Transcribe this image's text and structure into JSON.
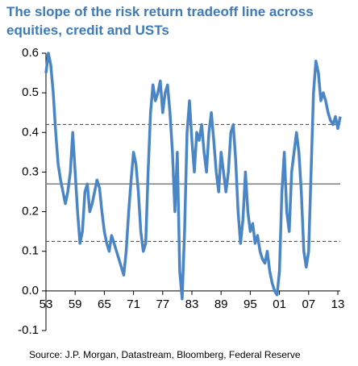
{
  "chart_data": {
    "type": "line",
    "title_lines": [
      "The slope of the risk return tradeoff line across",
      "equities, credit and USTs"
    ],
    "source": "Source: J.P. Morgan, Datastream, Bloomberg, Federal Reserve",
    "x": [
      1953,
      1953.5,
      1954,
      1954.5,
      1955,
      1955.5,
      1956,
      1956.5,
      1957,
      1957.5,
      1958,
      1958.5,
      1959,
      1959.5,
      1960,
      1960.5,
      1961,
      1961.5,
      1962,
      1962.5,
      1963,
      1963.5,
      1964,
      1964.5,
      1965,
      1965.5,
      1966,
      1966.5,
      1967,
      1967.5,
      1968,
      1968.5,
      1969,
      1969.5,
      1970,
      1970.5,
      1971,
      1971.5,
      1972,
      1972.5,
      1973,
      1973.5,
      1974,
      1974.5,
      1975,
      1975.5,
      1976,
      1976.5,
      1977,
      1977.5,
      1978,
      1978.5,
      1979,
      1979.5,
      1980,
      1980.5,
      1981,
      1981.5,
      1982,
      1982.5,
      1983,
      1983.5,
      1984,
      1984.5,
      1985,
      1985.5,
      1986,
      1986.5,
      1987,
      1987.5,
      1988,
      1988.5,
      1989,
      1989.5,
      1990,
      1990.5,
      1991,
      1991.5,
      1992,
      1992.5,
      1993,
      1993.5,
      1994,
      1994.5,
      1995,
      1995.5,
      1996,
      1996.5,
      1997,
      1997.5,
      1998,
      1998.5,
      1999,
      1999.5,
      2000,
      2000.5,
      2001,
      2001.5,
      2002,
      2002.5,
      2003,
      2003.5,
      2004,
      2004.5,
      2005,
      2005.5,
      2006,
      2006.5,
      2007,
      2007.5,
      2008,
      2008.5,
      2009,
      2009.5,
      2010,
      2010.5,
      2011,
      2011.5,
      2012,
      2012.5,
      2013,
      2013.5
    ],
    "series": [
      {
        "color": "#4a86c5",
        "values": [
          0.55,
          0.6,
          0.57,
          0.5,
          0.4,
          0.32,
          0.28,
          0.25,
          0.22,
          0.25,
          0.3,
          0.4,
          0.3,
          0.2,
          0.12,
          0.15,
          0.25,
          0.27,
          0.2,
          0.22,
          0.25,
          0.28,
          0.26,
          0.2,
          0.15,
          0.12,
          0.1,
          0.14,
          0.12,
          0.1,
          0.08,
          0.06,
          0.04,
          0.1,
          0.2,
          0.28,
          0.35,
          0.32,
          0.25,
          0.15,
          0.1,
          0.12,
          0.3,
          0.45,
          0.52,
          0.48,
          0.5,
          0.53,
          0.45,
          0.5,
          0.52,
          0.45,
          0.35,
          0.2,
          0.35,
          0.05,
          -0.02,
          0.15,
          0.4,
          0.48,
          0.38,
          0.3,
          0.4,
          0.38,
          0.42,
          0.35,
          0.3,
          0.4,
          0.45,
          0.38,
          0.3,
          0.25,
          0.35,
          0.3,
          0.25,
          0.3,
          0.4,
          0.42,
          0.33,
          0.2,
          0.12,
          0.18,
          0.3,
          0.2,
          0.15,
          0.17,
          0.12,
          0.14,
          0.1,
          0.08,
          0.07,
          0.1,
          0.05,
          0.02,
          0.0,
          -0.01,
          0.05,
          0.25,
          0.35,
          0.2,
          0.15,
          0.3,
          0.35,
          0.4,
          0.35,
          0.25,
          0.1,
          0.06,
          0.1,
          0.3,
          0.5,
          0.58,
          0.55,
          0.48,
          0.5,
          0.48,
          0.45,
          0.43,
          0.42,
          0.44,
          0.41,
          0.44
        ]
      }
    ],
    "reference_lines": [
      {
        "value": 0.42,
        "style": "dashed"
      },
      {
        "value": 0.27,
        "style": "solid"
      },
      {
        "value": 0.125,
        "style": "dashed"
      }
    ],
    "xlim": [
      1953,
      2013.5
    ],
    "xticks": [
      {
        "value": 1953,
        "label": "53"
      },
      {
        "value": 1959,
        "label": "59"
      },
      {
        "value": 1965,
        "label": "65"
      },
      {
        "value": 1971,
        "label": "71"
      },
      {
        "value": 1977,
        "label": "77"
      },
      {
        "value": 1983,
        "label": "83"
      },
      {
        "value": 1989,
        "label": "89"
      },
      {
        "value": 1995,
        "label": "95"
      },
      {
        "value": 2001,
        "label": "01"
      },
      {
        "value": 2007,
        "label": "07"
      },
      {
        "value": 2013,
        "label": "13"
      }
    ],
    "ylim": [
      -0.1,
      0.6
    ],
    "yticks": [
      {
        "value": -0.1,
        "label": "-0.1"
      },
      {
        "value": 0,
        "label": "0.0"
      },
      0.1,
      0.2,
      0.3,
      0.4,
      0.5,
      0.6
    ]
  }
}
